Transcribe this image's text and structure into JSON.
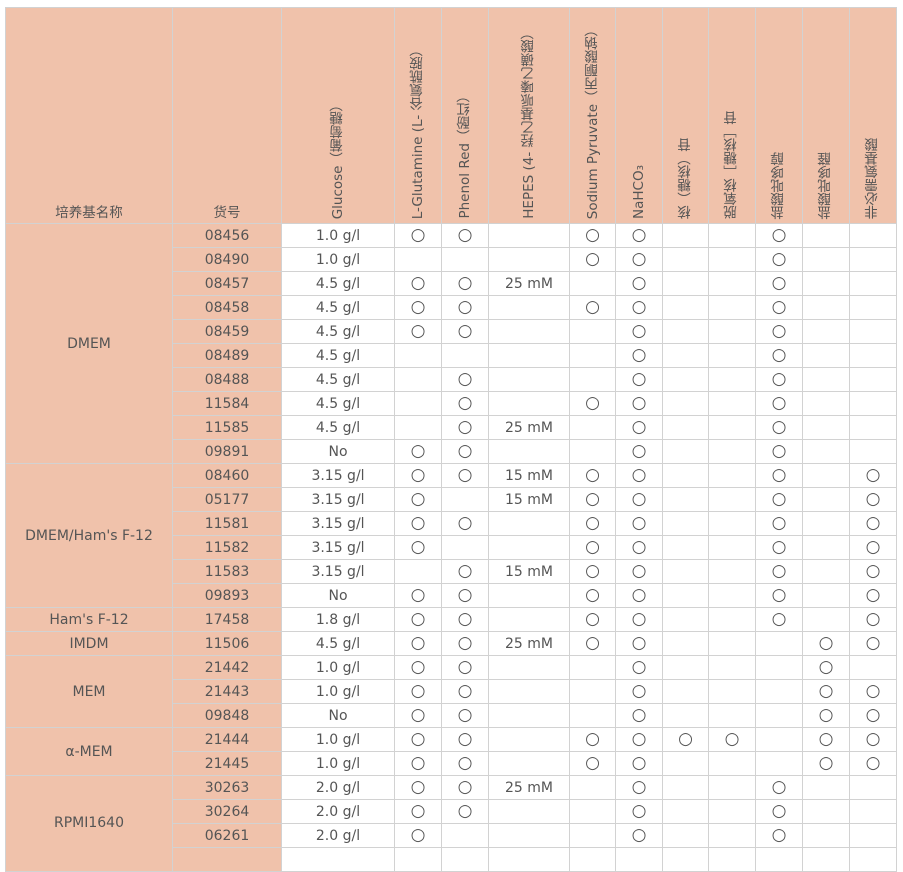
{
  "header": {
    "medium": "培养基名称",
    "catalog": "货号",
    "columns": [
      "Glucose（葡萄糖）",
      "L-Glutamine (L- 谷氨酰胺）",
      "Phenol Red（酚红）",
      "HEPES (4- 羟乙基哌嗪乙磺酸）",
      "Sodium Pyruvate（丙酮酸钠）",
      "NaHCO₃",
      "核（糖核）苷",
      "脱氧核［糖核］苷",
      "盐酸吡哆醇",
      "盐酸吡哆醛",
      "非必需氨基酸"
    ]
  },
  "colors": {
    "header_bg": "#f0c2ab",
    "grid": "#d2d2d2",
    "text": "#555555"
  },
  "mark_symbol": "○",
  "groups": [
    {
      "name": "DMEM",
      "rows": [
        {
          "id": "08456",
          "cells": [
            "1.0 g/l",
            "○",
            "○",
            "",
            "○",
            "○",
            "",
            "",
            "○",
            "",
            ""
          ]
        },
        {
          "id": "08490",
          "cells": [
            "1.0 g/l",
            "",
            "",
            "",
            "○",
            "○",
            "",
            "",
            "○",
            "",
            ""
          ]
        },
        {
          "id": "08457",
          "cells": [
            "4.5 g/l",
            "○",
            "○",
            "25 mM",
            "",
            "○",
            "",
            "",
            "○",
            "",
            ""
          ]
        },
        {
          "id": "08458",
          "cells": [
            "4.5 g/l",
            "○",
            "○",
            "",
            "○",
            "○",
            "",
            "",
            "○",
            "",
            ""
          ]
        },
        {
          "id": "08459",
          "cells": [
            "4.5 g/l",
            "○",
            "○",
            "",
            "",
            "○",
            "",
            "",
            "○",
            "",
            ""
          ]
        },
        {
          "id": "08489",
          "cells": [
            "4.5 g/l",
            "",
            "",
            "",
            "",
            "○",
            "",
            "",
            "○",
            "",
            ""
          ]
        },
        {
          "id": "08488",
          "cells": [
            "4.5 g/l",
            "",
            "○",
            "",
            "",
            "○",
            "",
            "",
            "○",
            "",
            ""
          ]
        },
        {
          "id": "11584",
          "cells": [
            "4.5 g/l",
            "",
            "○",
            "",
            "○",
            "○",
            "",
            "",
            "○",
            "",
            ""
          ]
        },
        {
          "id": "11585",
          "cells": [
            "4.5 g/l",
            "",
            "○",
            "25 mM",
            "",
            "○",
            "",
            "",
            "○",
            "",
            ""
          ]
        },
        {
          "id": "09891",
          "cells": [
            "No",
            "○",
            "○",
            "",
            "",
            "○",
            "",
            "",
            "○",
            "",
            ""
          ]
        }
      ]
    },
    {
      "name": "DMEM/Ham's F-12",
      "rows": [
        {
          "id": "08460",
          "cells": [
            "3.15 g/l",
            "○",
            "○",
            "15 mM",
            "○",
            "○",
            "",
            "",
            "○",
            "",
            "○"
          ]
        },
        {
          "id": "05177",
          "cells": [
            "3.15 g/l",
            "○",
            "",
            "15 mM",
            "○",
            "○",
            "",
            "",
            "○",
            "",
            "○"
          ]
        },
        {
          "id": "11581",
          "cells": [
            "3.15 g/l",
            "○",
            "○",
            "",
            "○",
            "○",
            "",
            "",
            "○",
            "",
            "○"
          ]
        },
        {
          "id": "11582",
          "cells": [
            "3.15 g/l",
            "○",
            "",
            "",
            "○",
            "○",
            "",
            "",
            "○",
            "",
            "○"
          ]
        },
        {
          "id": "11583",
          "cells": [
            "3.15 g/l",
            "",
            "○",
            "15 mM",
            "○",
            "○",
            "",
            "",
            "○",
            "",
            "○"
          ]
        },
        {
          "id": "09893",
          "cells": [
            "No",
            "○",
            "○",
            "",
            "○",
            "○",
            "",
            "",
            "○",
            "",
            "○"
          ]
        }
      ]
    },
    {
      "name": "Ham's F-12",
      "rows": [
        {
          "id": "17458",
          "cells": [
            "1.8 g/l",
            "○",
            "○",
            "",
            "○",
            "○",
            "",
            "",
            "○",
            "",
            "○"
          ]
        }
      ]
    },
    {
      "name": "IMDM",
      "rows": [
        {
          "id": "11506",
          "cells": [
            "4.5 g/l",
            "○",
            "○",
            "25 mM",
            "○",
            "○",
            "",
            "",
            "",
            "○",
            "○"
          ]
        }
      ]
    },
    {
      "name": "MEM",
      "rows": [
        {
          "id": "21442",
          "cells": [
            "1.0 g/l",
            "○",
            "○",
            "",
            "",
            "○",
            "",
            "",
            "",
            "○",
            ""
          ]
        },
        {
          "id": "21443",
          "cells": [
            "1.0 g/l",
            "○",
            "○",
            "",
            "",
            "○",
            "",
            "",
            "",
            "○",
            "○"
          ]
        },
        {
          "id": "09848",
          "cells": [
            "No",
            "○",
            "○",
            "",
            "",
            "○",
            "",
            "",
            "",
            "○",
            "○"
          ]
        }
      ]
    },
    {
      "name": "α-MEM",
      "rows": [
        {
          "id": "21444",
          "cells": [
            "1.0 g/l",
            "○",
            "○",
            "",
            "○",
            "○",
            "○",
            "○",
            "",
            "○",
            "○"
          ]
        },
        {
          "id": "21445",
          "cells": [
            "1.0 g/l",
            "○",
            "○",
            "",
            "○",
            "○",
            "",
            "",
            "",
            "○",
            "○"
          ]
        }
      ]
    },
    {
      "name": "RPMI1640",
      "rows": [
        {
          "id": "30263",
          "cells": [
            "2.0 g/l",
            "○",
            "○",
            "25 mM",
            "",
            "○",
            "",
            "",
            "○",
            "",
            ""
          ]
        },
        {
          "id": "30264",
          "cells": [
            "2.0 g/l",
            "○",
            "○",
            "",
            "",
            "○",
            "",
            "",
            "○",
            "",
            ""
          ]
        },
        {
          "id": "06261",
          "cells": [
            "2.0 g/l",
            "○",
            "",
            "",
            "",
            "○",
            "",
            "",
            "○",
            "",
            ""
          ]
        },
        {
          "id": "",
          "cells": [
            "",
            "",
            "",
            "",
            "",
            "",
            "",
            "",
            "",
            "",
            ""
          ]
        }
      ]
    }
  ]
}
